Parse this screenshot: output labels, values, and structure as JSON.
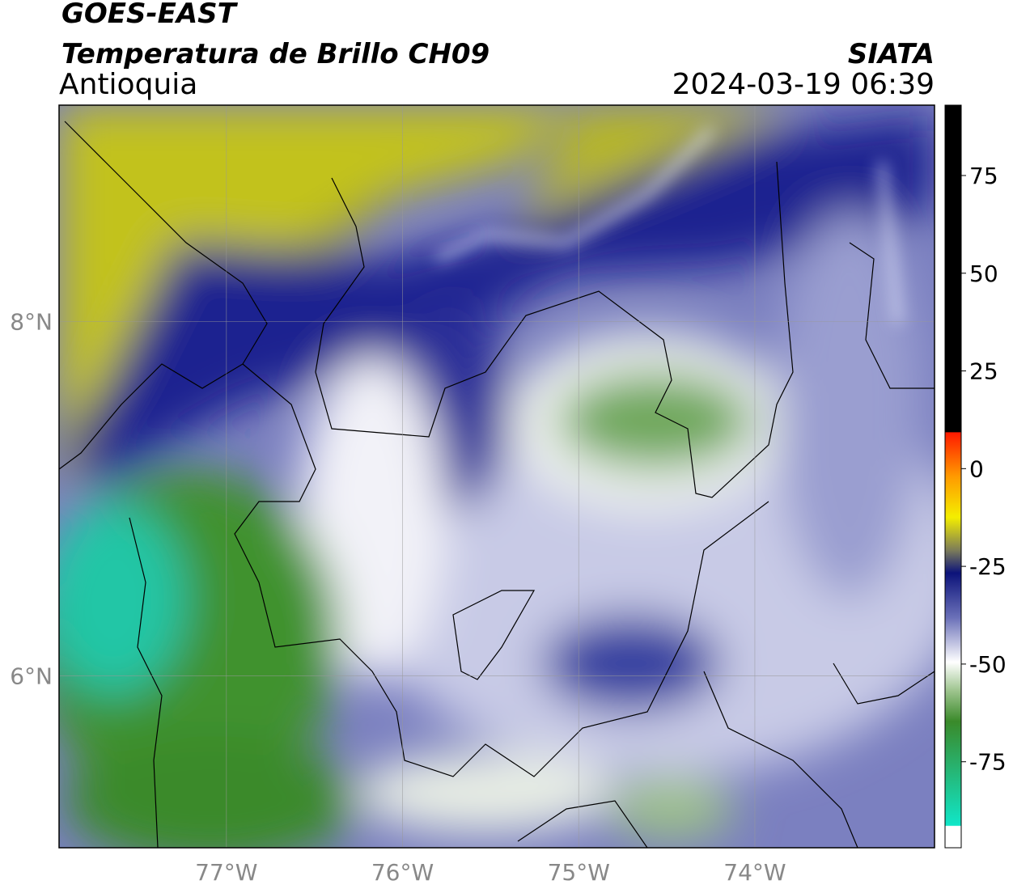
{
  "header": {
    "title": "GOES-EAST",
    "subtitle": "Temperatura de Brillo CH09",
    "source": "SIATA",
    "region": "Antioquia",
    "datetime": "2024-03-19 06:39"
  },
  "map": {
    "xlim": [
      -77.95,
      -72.98
    ],
    "ylim": [
      5.03,
      9.22
    ],
    "xticks": [
      {
        "value": -77,
        "label": "77°W"
      },
      {
        "value": -76,
        "label": "76°W"
      },
      {
        "value": -75,
        "label": "75°W"
      },
      {
        "value": -74,
        "label": "74°W"
      }
    ],
    "yticks": [
      {
        "value": 8,
        "label": "8°N"
      },
      {
        "value": 6,
        "label": "6°N"
      }
    ],
    "grid": true
  },
  "colorbar": {
    "lim": [
      -97,
      93
    ],
    "ticks": [
      75,
      50,
      25,
      0,
      -25,
      -50,
      -75
    ]
  }
}
